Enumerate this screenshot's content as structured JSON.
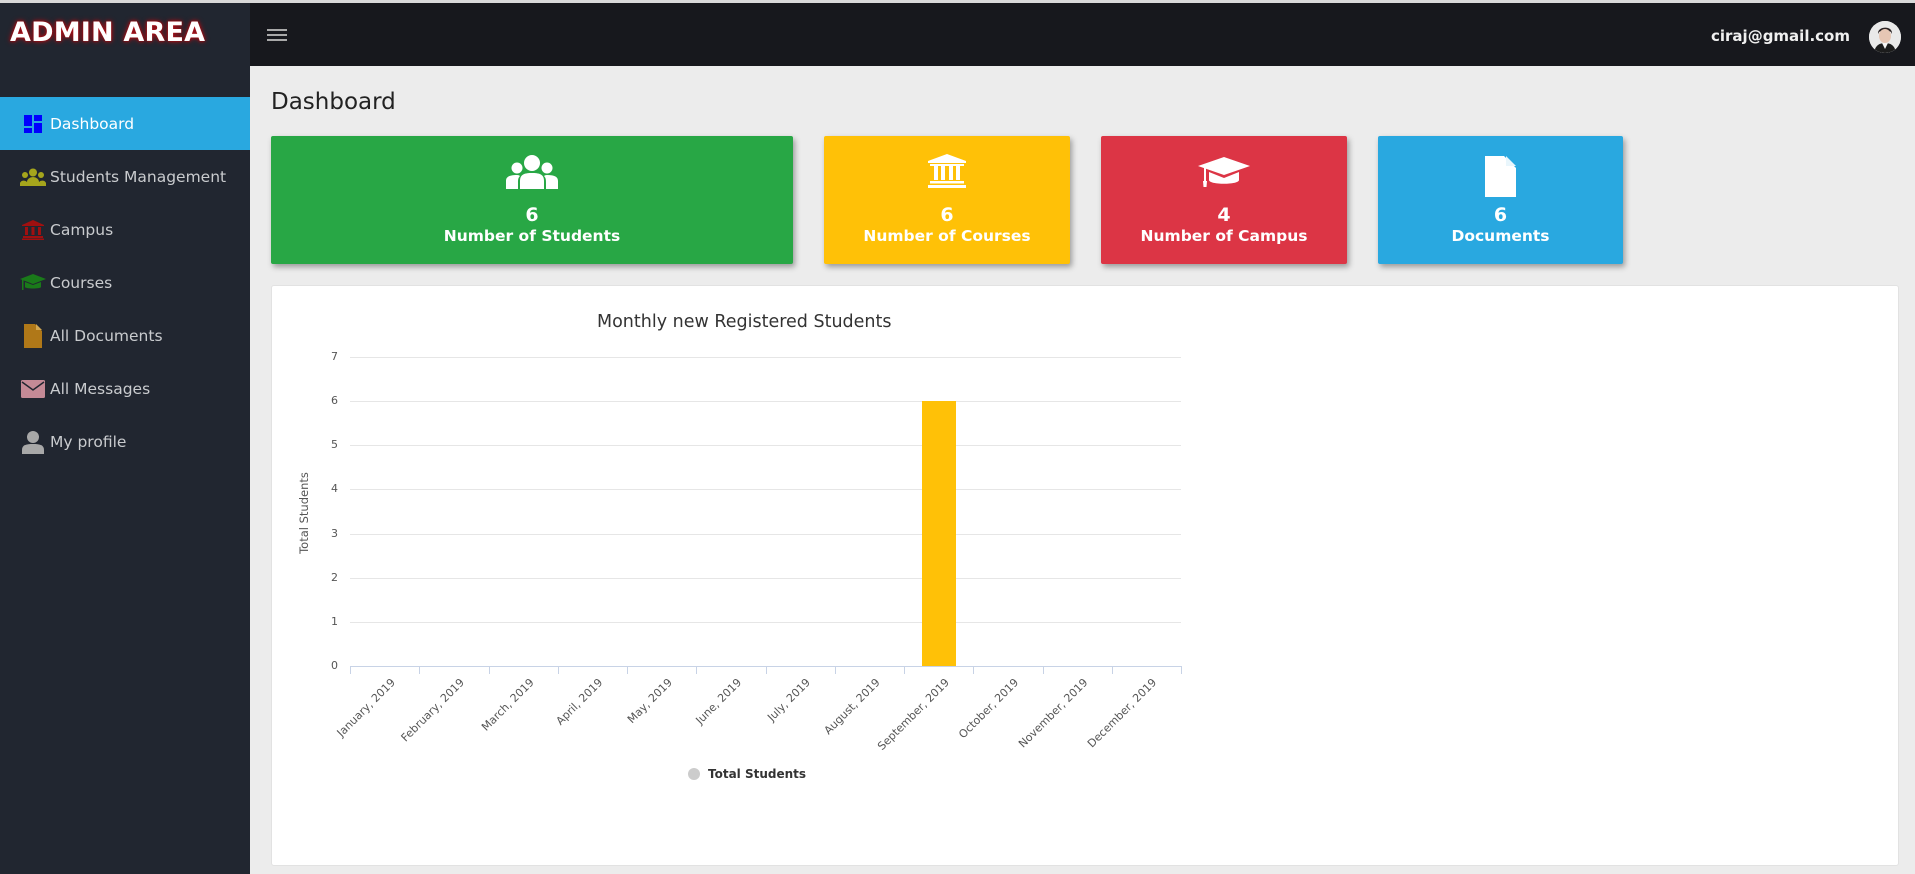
{
  "sidebar": {
    "brand": "ADMIN AREA",
    "items": [
      {
        "label": "Dashboard",
        "icon": "dashboard-icon",
        "icon_color": "#0000ff",
        "active": true
      },
      {
        "label": "Students Management",
        "icon": "users-icon",
        "icon_color": "#a5a51c",
        "active": false
      },
      {
        "label": "Campus",
        "icon": "university-icon",
        "icon_color": "#a01010",
        "active": false
      },
      {
        "label": "Courses",
        "icon": "graduation-cap-icon",
        "icon_color": "#1a7a1a",
        "active": false
      },
      {
        "label": "All Documents",
        "icon": "file-icon",
        "icon_color": "#b07818",
        "active": false
      },
      {
        "label": "All Messages",
        "icon": "envelope-icon",
        "icon_color": "#c48a96",
        "active": false
      },
      {
        "label": "My profile",
        "icon": "user-icon",
        "icon_color": "#a8a8a8",
        "active": false
      }
    ]
  },
  "topbar": {
    "menu_icon": "hamburger-icon",
    "user_email": "ciraj@gmail.com"
  },
  "page": {
    "title": "Dashboard"
  },
  "cards": [
    {
      "value": "6",
      "label": "Number of Students",
      "icon": "users-icon",
      "color": "#28a745"
    },
    {
      "value": "6",
      "label": "Number of Courses",
      "icon": "university-icon",
      "color": "#ffc107"
    },
    {
      "value": "4",
      "label": "Number of Campus",
      "icon": "graduation-cap-icon",
      "color": "#dc3545"
    },
    {
      "value": "6",
      "label": "Documents",
      "icon": "file-icon",
      "color": "#29a8e0"
    }
  ],
  "chart_data": {
    "type": "bar",
    "title": "Monthly new Registered Students",
    "xlabel": "",
    "ylabel": "Total Students",
    "categories": [
      "January, 2019",
      "February, 2019",
      "March, 2019",
      "April, 2019",
      "May, 2019",
      "June, 2019",
      "July, 2019",
      "August, 2019",
      "September, 2019",
      "October, 2019",
      "November, 2019",
      "December, 2019"
    ],
    "series": [
      {
        "name": "Total Students",
        "color": "#ffc107",
        "values": [
          0,
          0,
          0,
          0,
          0,
          0,
          0,
          0,
          6,
          0,
          0,
          0
        ]
      }
    ],
    "ylim": [
      0,
      7
    ],
    "yticks": [
      "0",
      "1",
      "2",
      "3",
      "4",
      "5",
      "6",
      "7"
    ],
    "grid": true,
    "legend_position": "bottom",
    "legend": [
      "Total Students"
    ]
  }
}
